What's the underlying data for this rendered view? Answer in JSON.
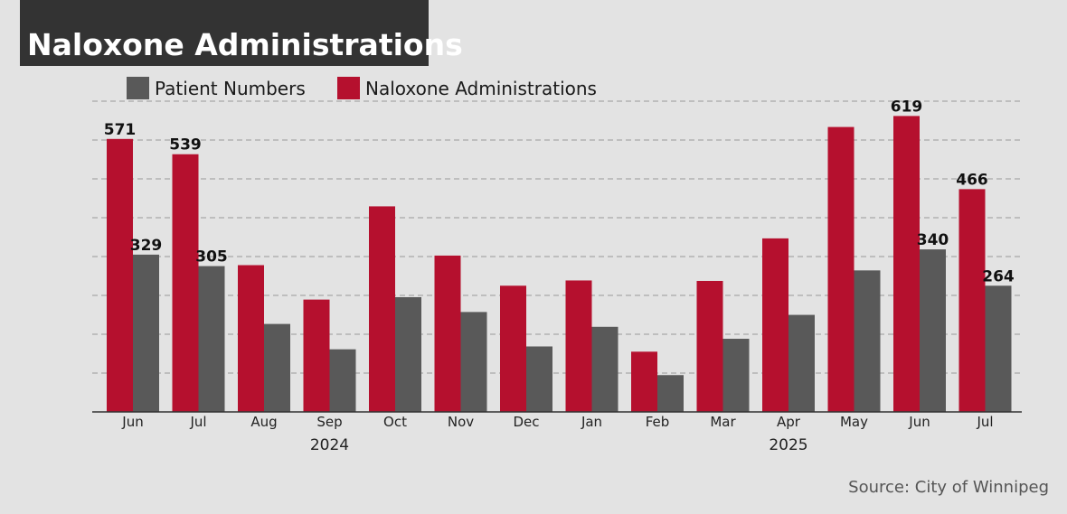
{
  "header": {
    "title": "Naloxone Administrations"
  },
  "footer": {
    "source": "Source: City of Winnipeg"
  },
  "colors": {
    "naloxone": "#b5102e",
    "patients": "#595959",
    "grid": "#9a9a9a",
    "axis": "#333333"
  },
  "chart_data": {
    "type": "bar",
    "categories": [
      "Jun",
      "Jul",
      "Aug",
      "Sep",
      "Oct",
      "Nov",
      "Dec",
      "Jan",
      "Feb",
      "Mar",
      "Apr",
      "May",
      "Jun",
      "Jul"
    ],
    "year_labels": [
      {
        "label": "2024",
        "from": 0,
        "to": 6
      },
      {
        "label": "2025",
        "from": 7,
        "to": 13
      }
    ],
    "series": [
      {
        "name": "Naloxone Administrations",
        "color": "#b5102e",
        "values": [
          571,
          539,
          307,
          235,
          430,
          327,
          264,
          275,
          126,
          274,
          363,
          596,
          619,
          466
        ],
        "labels": [
          "571",
          "539",
          "",
          "",
          "",
          "",
          "",
          "",
          "",
          "",
          "",
          "",
          "619",
          "466"
        ]
      },
      {
        "name": "Patient Numbers",
        "color": "#595959",
        "values": [
          329,
          305,
          184,
          131,
          240,
          209,
          137,
          178,
          77,
          153,
          203,
          296,
          340,
          264
        ],
        "labels": [
          "329",
          "305",
          "",
          "",
          "",
          "",
          "",
          "",
          "",
          "",
          "",
          "",
          "340",
          "264"
        ]
      }
    ],
    "legend_order": [
      "Patient Numbers",
      "Naloxone Administrations"
    ],
    "ylim": [
      0,
      650
    ],
    "ygrid_step": 81.25,
    "grid": true,
    "legend_position": "top-left"
  }
}
